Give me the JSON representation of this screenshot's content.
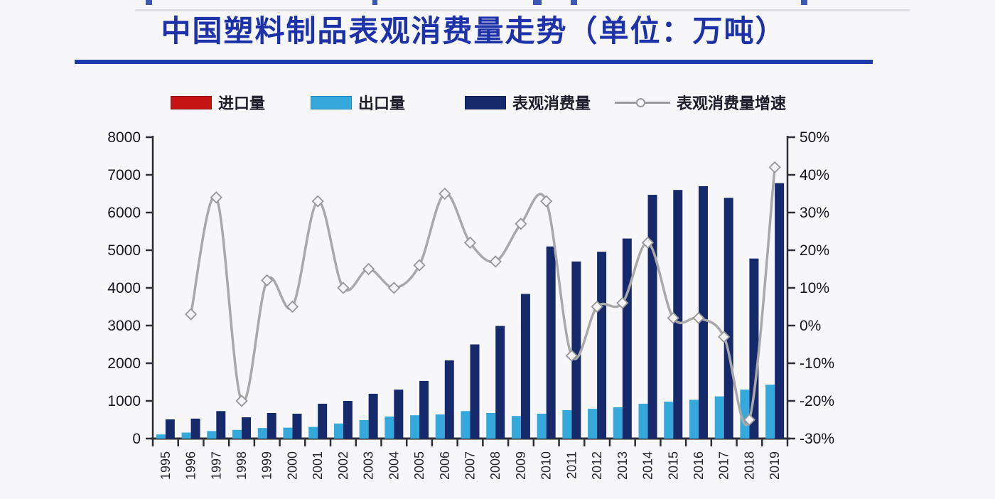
{
  "title": {
    "text": "中国塑料制品表观消费量走势（单位：万吨）",
    "accent_color": "#1d32a8",
    "underline_color": "#1d3caa"
  },
  "legend": {
    "import_label": "进口量",
    "export_label": "出口量",
    "consumption_label": "表观消费量",
    "growth_label": "表观消费量增速"
  },
  "chart_data": {
    "type": "bar",
    "subtype": "grouped bars with secondary-axis line (combo chart)",
    "title": "中国塑料制品表观消费量走势（单位：万吨）",
    "xlabel": "",
    "ylabel_left": "万吨",
    "ylabel_right": "%",
    "grid": false,
    "legend_position": "top",
    "categories": [
      "1995",
      "1996",
      "1997",
      "1998",
      "1999",
      "2000",
      "2001",
      "2002",
      "2003",
      "2004",
      "2005",
      "2006",
      "2007",
      "2008",
      "2009",
      "2010",
      "2011",
      "2012",
      "2013",
      "2014",
      "2015",
      "2016",
      "2017",
      "2018",
      "2019"
    ],
    "left_axis": {
      "min": 0,
      "max": 8000,
      "step": 1000,
      "tick_labels": [
        "8000",
        "7000",
        "6000",
        "5000",
        "4000",
        "3000",
        "2000",
        "1000",
        "0"
      ]
    },
    "right_axis": {
      "min": -30,
      "max": 50,
      "step": 10,
      "tick_labels": [
        "50%",
        "40%",
        "30%",
        "20%",
        "10%",
        "0%",
        "-10%",
        "-20%",
        "-30%"
      ]
    },
    "series": [
      {
        "name": "进口量",
        "type": "bar",
        "axis": "left",
        "color": "#c41414",
        "values": null,
        "note": "import bars are below pixel resolution in the source image (not visually discernible)"
      },
      {
        "name": "出口量",
        "type": "bar",
        "axis": "left",
        "color": "#35a8dc",
        "values": [
          110,
          160,
          200,
          230,
          280,
          290,
          310,
          400,
          490,
          585,
          620,
          640,
          730,
          680,
          600,
          660,
          755,
          790,
          830,
          925,
          980,
          1030,
          1120,
          1300,
          1430
        ]
      },
      {
        "name": "表观消费量",
        "type": "bar",
        "axis": "left",
        "color": "#16296b",
        "values": [
          510,
          530,
          730,
          565,
          680,
          660,
          925,
          1000,
          1190,
          1300,
          1530,
          2075,
          2500,
          2990,
          3840,
          5100,
          4700,
          4960,
          5310,
          6470,
          6600,
          6700,
          6390,
          4780,
          6780
        ]
      },
      {
        "name": "表观消费量增速",
        "type": "line",
        "axis": "right",
        "color": "#a9a9a9",
        "unit": "%",
        "values": [
          null,
          3,
          34,
          -20,
          12,
          5,
          33,
          10,
          15,
          10,
          16,
          35,
          22,
          17,
          27,
          33,
          -8,
          5,
          6,
          22,
          2,
          2,
          -3,
          -25,
          42
        ]
      }
    ]
  }
}
